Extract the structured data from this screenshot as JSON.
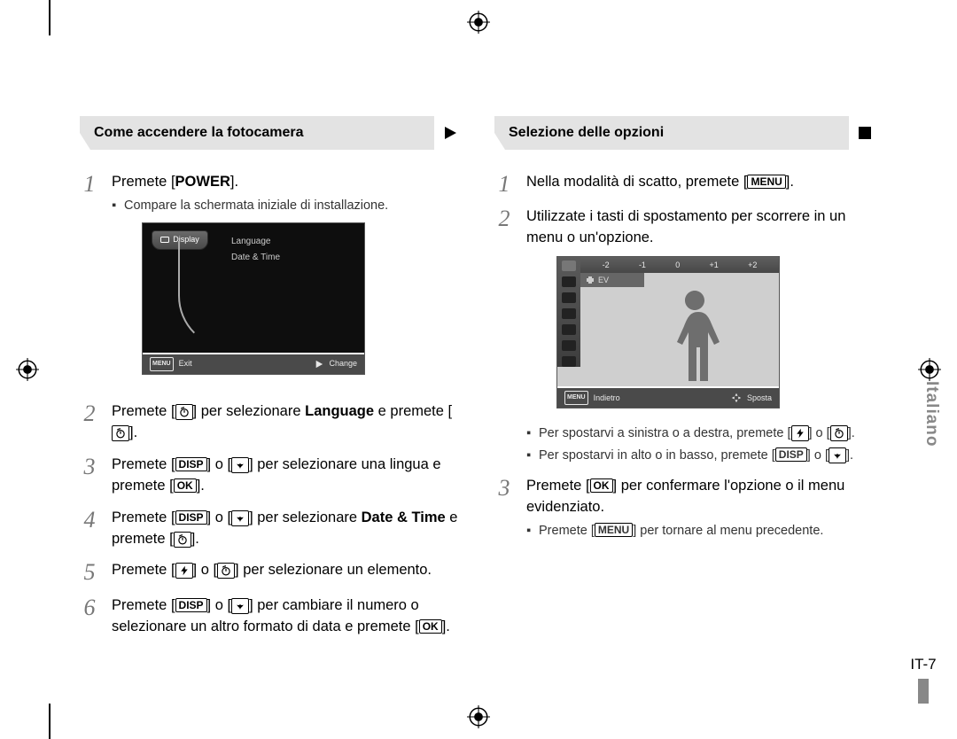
{
  "language_tab": "Italiano",
  "page_number": "IT-7",
  "colors": {
    "ribbon_fill": "#e3e3e3",
    "ribbon_text": "#000000",
    "step_number": "#7a7a7a",
    "body_text": "#000000",
    "sub_text": "#333333",
    "lcd_dark_bg": "#0e0e0e",
    "lcd_grey_bg": "#cfcfcf",
    "lcd_bar": "#4a4a4a",
    "side_lang": "#888888"
  },
  "icons": {
    "timer": "timer-icon",
    "disp": "DISP",
    "macro": "macro-icon",
    "ok": "OK",
    "flash": "flash-icon",
    "menu": "MENU",
    "nav": "nav-icon",
    "play": "play-icon"
  },
  "left": {
    "title": "Come accendere la fotocamera",
    "end_glyph": "play",
    "steps": [
      {
        "n": "1",
        "parts": [
          "Premete [",
          {
            "b": "POWER"
          },
          "]."
        ],
        "subs": [
          {
            "parts": [
              "Compare la schermata iniziale di installazione."
            ]
          }
        ],
        "screen": "lcd1"
      },
      {
        "n": "2",
        "parts": [
          "Premete [",
          {
            "icon": "timer"
          },
          "] per selezionare ",
          {
            "b": "Language"
          },
          " e premete [",
          {
            "icon": "timer"
          },
          "]."
        ]
      },
      {
        "n": "3",
        "parts": [
          "Premete [",
          {
            "key": "DISP"
          },
          "] o [",
          {
            "icon": "macro"
          },
          "] per selezionare una lingua e premete [",
          {
            "key": "OK"
          },
          "]."
        ]
      },
      {
        "n": "4",
        "parts": [
          "Premete [",
          {
            "key": "DISP"
          },
          "] o [",
          {
            "icon": "macro"
          },
          "] per selezionare ",
          {
            "b": "Date & Time"
          },
          " e premete [",
          {
            "icon": "timer"
          },
          "]."
        ]
      },
      {
        "n": "5",
        "parts": [
          "Premete [",
          {
            "icon": "flash"
          },
          "] o [",
          {
            "icon": "timer"
          },
          "] per selezionare un elemento."
        ]
      },
      {
        "n": "6",
        "parts": [
          "Premete [",
          {
            "key": "DISP"
          },
          "] o [",
          {
            "icon": "macro"
          },
          "] per cambiare il numero o selezionare un altro formato di data e premete [",
          {
            "key": "OK"
          },
          "]."
        ]
      }
    ],
    "lcd1": {
      "tab_label": "Display",
      "menu_items": [
        "Language",
        "Date & Time"
      ],
      "footer_left_key": "MENU",
      "footer_left": "Exit",
      "footer_right_icon": "play",
      "footer_right": "Change"
    }
  },
  "right": {
    "title": "Selezione delle opzioni",
    "end_glyph": "stop",
    "steps": [
      {
        "n": "1",
        "parts": [
          "Nella modalità di scatto, premete [",
          {
            "key": "MENU"
          },
          "]."
        ]
      },
      {
        "n": "2",
        "parts": [
          "Utilizzate i tasti di spostamento per scorrere in un menu o un'opzione."
        ],
        "screen": "lcd2",
        "subs": [
          {
            "parts": [
              "Per spostarvi a sinistra o a destra, premete [",
              {
                "icon": "flash"
              },
              "] o [",
              {
                "icon": "timer"
              },
              "]."
            ]
          },
          {
            "parts": [
              "Per spostarvi in alto o in basso, premete [",
              {
                "key": "DISP"
              },
              "] o [",
              {
                "icon": "macro"
              },
              "]."
            ]
          }
        ]
      },
      {
        "n": "3",
        "parts": [
          "Premete [",
          {
            "key": "OK"
          },
          "] per confermare l'opzione o il menu evidenziato."
        ],
        "subs": [
          {
            "parts": [
              "Premete [",
              {
                "key": "MENU"
              },
              "] per tornare al menu precedente."
            ]
          }
        ]
      }
    ],
    "lcd2": {
      "ev_ticks": [
        "-2",
        "-1",
        "0",
        "+1",
        "+2"
      ],
      "ev_label": "EV",
      "footer_left_key": "MENU",
      "footer_left": "Indietro",
      "footer_right_icon": "nav",
      "footer_right": "Sposta"
    }
  }
}
